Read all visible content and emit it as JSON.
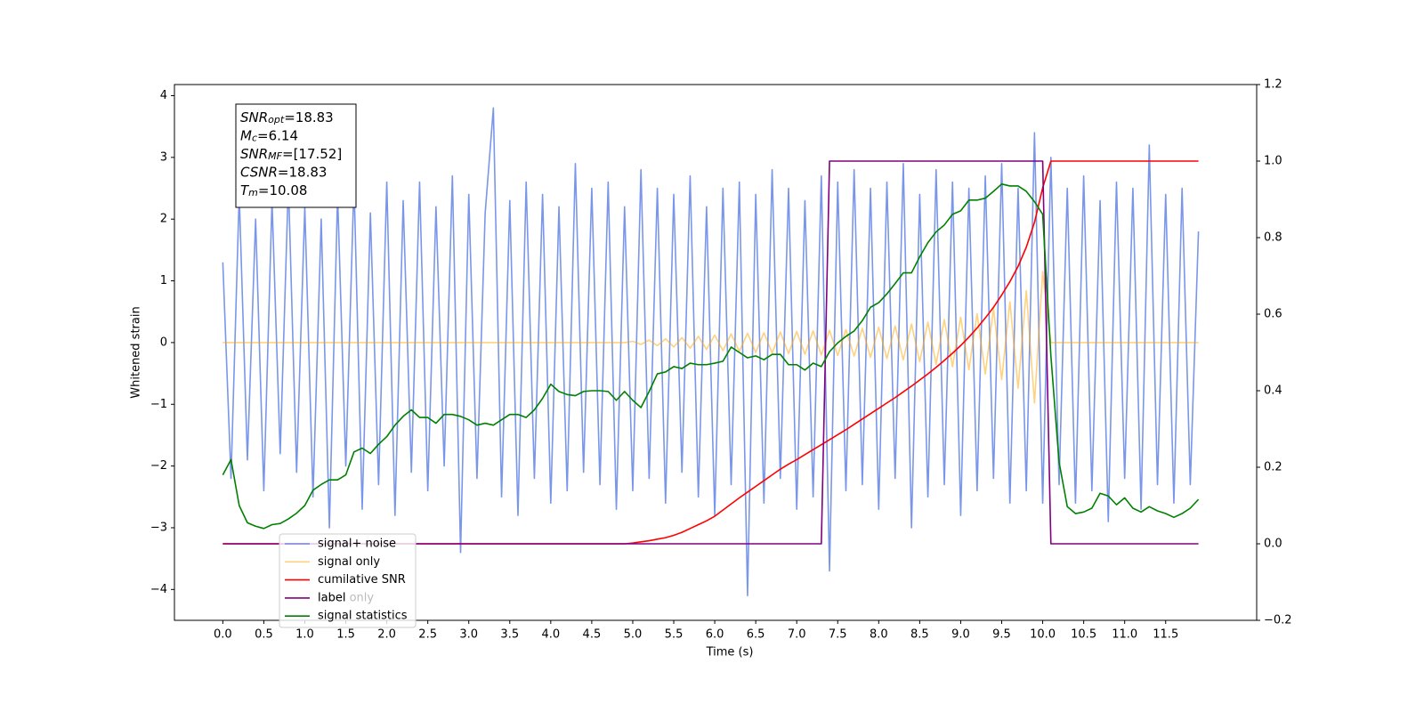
{
  "chart_data": {
    "type": "line",
    "xlabel": "Time (s)",
    "ylabel": "Whitened strain",
    "xlim": [
      -0.59,
      12.61
    ],
    "ylim": [
      -4.5,
      4.18
    ],
    "y2lim": [
      -0.2,
      1.2
    ],
    "xticks": [
      {
        "value": 0,
        "label": "0.0"
      },
      0.5,
      {
        "value": 1,
        "label": "1.0"
      },
      1.5,
      {
        "value": 2,
        "label": "2.0"
      },
      2.5,
      {
        "value": 3,
        "label": "3.0"
      },
      3.5,
      {
        "value": 4,
        "label": "4.0"
      },
      4.5,
      {
        "value": 5,
        "label": "5.0"
      },
      5.5,
      {
        "value": 6,
        "label": "6.0"
      },
      6.5,
      {
        "value": 7,
        "label": "7.0"
      },
      7.5,
      {
        "value": 8,
        "label": "8.0"
      },
      8.5,
      {
        "value": 9,
        "label": "9.0"
      },
      9.5,
      {
        "value": 10,
        "label": "10.0"
      },
      10.5,
      {
        "value": 11,
        "label": "11.0"
      },
      11.5
    ],
    "yticks": [
      {
        "value": -4,
        "label": "−4"
      },
      {
        "value": -3,
        "label": "−3"
      },
      {
        "value": -2,
        "label": "−2"
      },
      {
        "value": -1,
        "label": "−1"
      },
      0,
      1,
      2,
      3,
      4
    ],
    "y2ticks": [
      {
        "value": -0.2,
        "label": "−0.2"
      },
      {
        "value": 0,
        "label": "0.0"
      },
      0.2,
      0.4,
      0.6,
      0.8,
      {
        "value": 1,
        "label": "1.0"
      },
      1.2
    ],
    "legend": "lower left",
    "ghost_legend": [
      "label only"
    ],
    "annotation": [
      {
        "base": "SNR",
        "sub": "opt",
        "rest": "=18.83"
      },
      {
        "base": "M",
        "sub": "c",
        "rest": "=6.14"
      },
      {
        "base": "SNR",
        "sub": "MF",
        "rest": "=[17.52]"
      },
      {
        "base": "CSNR",
        "sub": "",
        "rest": "=18.83"
      },
      {
        "base": "T",
        "sub": "m",
        "rest": "=10.08"
      }
    ],
    "x": [
      0.0,
      0.1,
      0.2,
      0.3,
      0.4,
      0.5,
      0.6,
      0.7,
      0.8,
      0.9,
      1.0,
      1.1,
      1.2,
      1.3,
      1.4,
      1.5,
      1.6,
      1.7,
      1.8,
      1.9,
      2.0,
      2.1,
      2.2,
      2.3,
      2.4,
      2.5,
      2.6,
      2.7,
      2.8,
      2.9,
      3.0,
      3.1,
      3.2,
      3.3,
      3.4,
      3.5,
      3.6,
      3.7,
      3.8,
      3.9,
      4.0,
      4.1,
      4.2,
      4.3,
      4.4,
      4.5,
      4.6,
      4.7,
      4.8,
      4.9,
      5.0,
      5.1,
      5.2,
      5.3,
      5.4,
      5.5,
      5.6,
      5.7,
      5.8,
      5.9,
      6.0,
      6.1,
      6.2,
      6.3,
      6.4,
      6.5,
      6.6,
      6.7,
      6.8,
      6.9,
      7.0,
      7.1,
      7.2,
      7.3,
      7.4,
      7.5,
      7.6,
      7.7,
      7.8,
      7.9,
      8.0,
      8.1,
      8.2,
      8.3,
      8.4,
      8.5,
      8.6,
      8.7,
      8.8,
      8.9,
      9.0,
      9.1,
      9.2,
      9.3,
      9.4,
      9.5,
      9.6,
      9.7,
      9.8,
      9.9,
      10.0,
      10.1,
      10.2,
      10.3,
      10.4,
      10.5,
      10.6,
      10.7,
      10.8,
      10.9,
      11.0,
      11.1,
      11.2,
      11.3,
      11.4,
      11.5,
      11.6,
      11.7,
      11.8,
      11.9
    ],
    "series": [
      {
        "name": "signal+ noise",
        "color": "#4169e1",
        "alpha": 0.7,
        "axis": "y",
        "values": [
          1.3,
          -2.2,
          2.4,
          -1.9,
          2.0,
          -2.4,
          2.3,
          -1.8,
          2.6,
          -2.1,
          2.2,
          -2.5,
          2.0,
          -3.0,
          2.4,
          -2.0,
          2.6,
          -2.7,
          2.1,
          -2.3,
          2.6,
          -2.8,
          2.3,
          -2.1,
          2.6,
          -2.4,
          2.2,
          -2.0,
          2.7,
          -3.4,
          2.4,
          -2.2,
          2.1,
          3.8,
          -2.5,
          2.3,
          -2.8,
          2.6,
          -2.2,
          2.4,
          -2.6,
          2.2,
          -2.4,
          2.9,
          -2.1,
          2.5,
          -2.3,
          2.6,
          -2.7,
          2.2,
          -2.4,
          2.8,
          -2.2,
          2.5,
          -2.6,
          2.4,
          -2.1,
          2.7,
          -2.5,
          2.2,
          -2.8,
          2.5,
          -2.3,
          2.6,
          -4.1,
          2.4,
          -2.6,
          2.8,
          -2.2,
          2.5,
          -2.7,
          2.3,
          -2.5,
          2.7,
          -3.7,
          2.6,
          -2.4,
          2.8,
          -2.3,
          2.5,
          -2.7,
          2.6,
          -2.2,
          2.9,
          -3.0,
          2.4,
          -2.5,
          2.8,
          -2.3,
          2.6,
          -2.8,
          2.5,
          -2.4,
          2.7,
          -2.2,
          2.9,
          -2.6,
          2.5,
          -2.4,
          3.4,
          -2.6,
          3.0,
          -2.3,
          2.5,
          -2.6,
          2.7,
          -2.4,
          2.3,
          -2.9,
          2.6,
          -2.2,
          2.5,
          -2.7,
          3.2,
          -2.3,
          2.4,
          -2.6,
          2.5,
          -2.3,
          1.8
        ]
      },
      {
        "name": "signal only",
        "color": "#ffa500",
        "alpha": 0.5,
        "axis": "y",
        "values": [
          0,
          0,
          0,
          0,
          0,
          0,
          0,
          0,
          0,
          0,
          0,
          0,
          0,
          0,
          0,
          0,
          0,
          0,
          0,
          0,
          0,
          0,
          0,
          0,
          0,
          0,
          0,
          0,
          0,
          0,
          0,
          0,
          0,
          0,
          0,
          0,
          0,
          0,
          0,
          0,
          0,
          0,
          0,
          0,
          0,
          0,
          0,
          0,
          0,
          0,
          0.02,
          -0.03,
          0.04,
          -0.05,
          0.06,
          -0.07,
          0.08,
          -0.09,
          0.1,
          -0.11,
          0.12,
          -0.13,
          0.14,
          -0.14,
          0.15,
          -0.16,
          0.16,
          -0.17,
          0.17,
          -0.18,
          0.18,
          -0.19,
          0.19,
          -0.2,
          0.2,
          -0.21,
          0.21,
          -0.22,
          0.23,
          -0.24,
          0.25,
          -0.26,
          0.27,
          -0.28,
          0.3,
          -0.31,
          0.33,
          -0.35,
          0.37,
          -0.39,
          0.41,
          -0.44,
          0.47,
          -0.51,
          0.55,
          -0.6,
          0.66,
          -0.74,
          0.84,
          -0.98,
          1.15,
          0,
          0,
          0,
          0,
          0,
          0,
          0,
          0,
          0,
          0,
          0,
          0,
          0,
          0,
          0,
          0,
          0,
          0,
          0
        ]
      },
      {
        "name": "cumilative SNR",
        "color": "#ff0000",
        "alpha": 1,
        "axis": "y2",
        "values": [
          0,
          0,
          0,
          0,
          0,
          0,
          0,
          0,
          0,
          0,
          0,
          0,
          0,
          0,
          0,
          0,
          0,
          0,
          0,
          0,
          0,
          0,
          0,
          0,
          0,
          0,
          0,
          0,
          0,
          0,
          0,
          0,
          0,
          0,
          0,
          0,
          0,
          0,
          0,
          0,
          0,
          0,
          0,
          0,
          0,
          0,
          0,
          0,
          0,
          0,
          0.002,
          0.005,
          0.008,
          0.012,
          0.016,
          0.022,
          0.03,
          0.04,
          0.05,
          0.06,
          0.072,
          0.088,
          0.104,
          0.12,
          0.135,
          0.15,
          0.165,
          0.18,
          0.195,
          0.208,
          0.22,
          0.233,
          0.246,
          0.259,
          0.272,
          0.285,
          0.298,
          0.312,
          0.326,
          0.34,
          0.354,
          0.368,
          0.382,
          0.397,
          0.412,
          0.428,
          0.444,
          0.461,
          0.479,
          0.498,
          0.518,
          0.54,
          0.564,
          0.59,
          0.618,
          0.65,
          0.685,
          0.725,
          0.775,
          0.84,
          0.93,
          1,
          1,
          1,
          1,
          1,
          1,
          1,
          1,
          1,
          1,
          1,
          1,
          1,
          1,
          1,
          1,
          1,
          1,
          1
        ]
      },
      {
        "name": "label",
        "color": "#800080",
        "alpha": 1,
        "axis": "y2",
        "values": [
          0,
          0,
          0,
          0,
          0,
          0,
          0,
          0,
          0,
          0,
          0,
          0,
          0,
          0,
          0,
          0,
          0,
          0,
          0,
          0,
          0,
          0,
          0,
          0,
          0,
          0,
          0,
          0,
          0,
          0,
          0,
          0,
          0,
          0,
          0,
          0,
          0,
          0,
          0,
          0,
          0,
          0,
          0,
          0,
          0,
          0,
          0,
          0,
          0,
          0,
          0,
          0,
          0,
          0,
          0,
          0,
          0,
          0,
          0,
          0,
          0,
          0,
          0,
          0,
          0,
          0,
          0,
          0,
          0,
          0,
          0,
          0,
          0,
          0,
          1,
          1,
          1,
          1,
          1,
          1,
          1,
          1,
          1,
          1,
          1,
          1,
          1,
          1,
          1,
          1,
          1,
          1,
          1,
          1,
          1,
          1,
          1,
          1,
          1,
          1,
          1,
          0,
          0,
          0,
          0,
          0,
          0,
          0,
          0,
          0,
          0,
          0,
          0,
          0,
          0,
          0,
          0,
          0,
          0,
          0
        ]
      },
      {
        "name": "signal statistics",
        "color": "#008000",
        "alpha": 1,
        "axis": "y2",
        "values": [
          0.18,
          0.22,
          0.1,
          0.055,
          0.046,
          0.04,
          0.05,
          0.053,
          0.065,
          0.08,
          0.1,
          0.14,
          0.155,
          0.167,
          0.167,
          0.18,
          0.24,
          0.25,
          0.236,
          0.26,
          0.28,
          0.31,
          0.333,
          0.35,
          0.33,
          0.33,
          0.315,
          0.338,
          0.338,
          0.333,
          0.324,
          0.31,
          0.315,
          0.31,
          0.324,
          0.338,
          0.338,
          0.33,
          0.35,
          0.38,
          0.417,
          0.398,
          0.39,
          0.387,
          0.398,
          0.4,
          0.4,
          0.398,
          0.375,
          0.398,
          0.375,
          0.356,
          0.398,
          0.444,
          0.449,
          0.463,
          0.458,
          0.472,
          0.468,
          0.468,
          0.472,
          0.477,
          0.514,
          0.5,
          0.486,
          0.491,
          0.481,
          0.495,
          0.495,
          0.468,
          0.468,
          0.454,
          0.472,
          0.463,
          0.502,
          0.525,
          0.542,
          0.556,
          0.583,
          0.618,
          0.63,
          0.653,
          0.68,
          0.708,
          0.708,
          0.75,
          0.787,
          0.815,
          0.833,
          0.861,
          0.87,
          0.898,
          0.898,
          0.903,
          0.921,
          0.94,
          0.935,
          0.935,
          0.921,
          0.894,
          0.861,
          0.491,
          0.213,
          0.097,
          0.079,
          0.083,
          0.093,
          0.132,
          0.125,
          0.102,
          0.12,
          0.093,
          0.083,
          0.097,
          0.086,
          0.079,
          0.069,
          0.079,
          0.093,
          0.116
        ]
      }
    ]
  }
}
